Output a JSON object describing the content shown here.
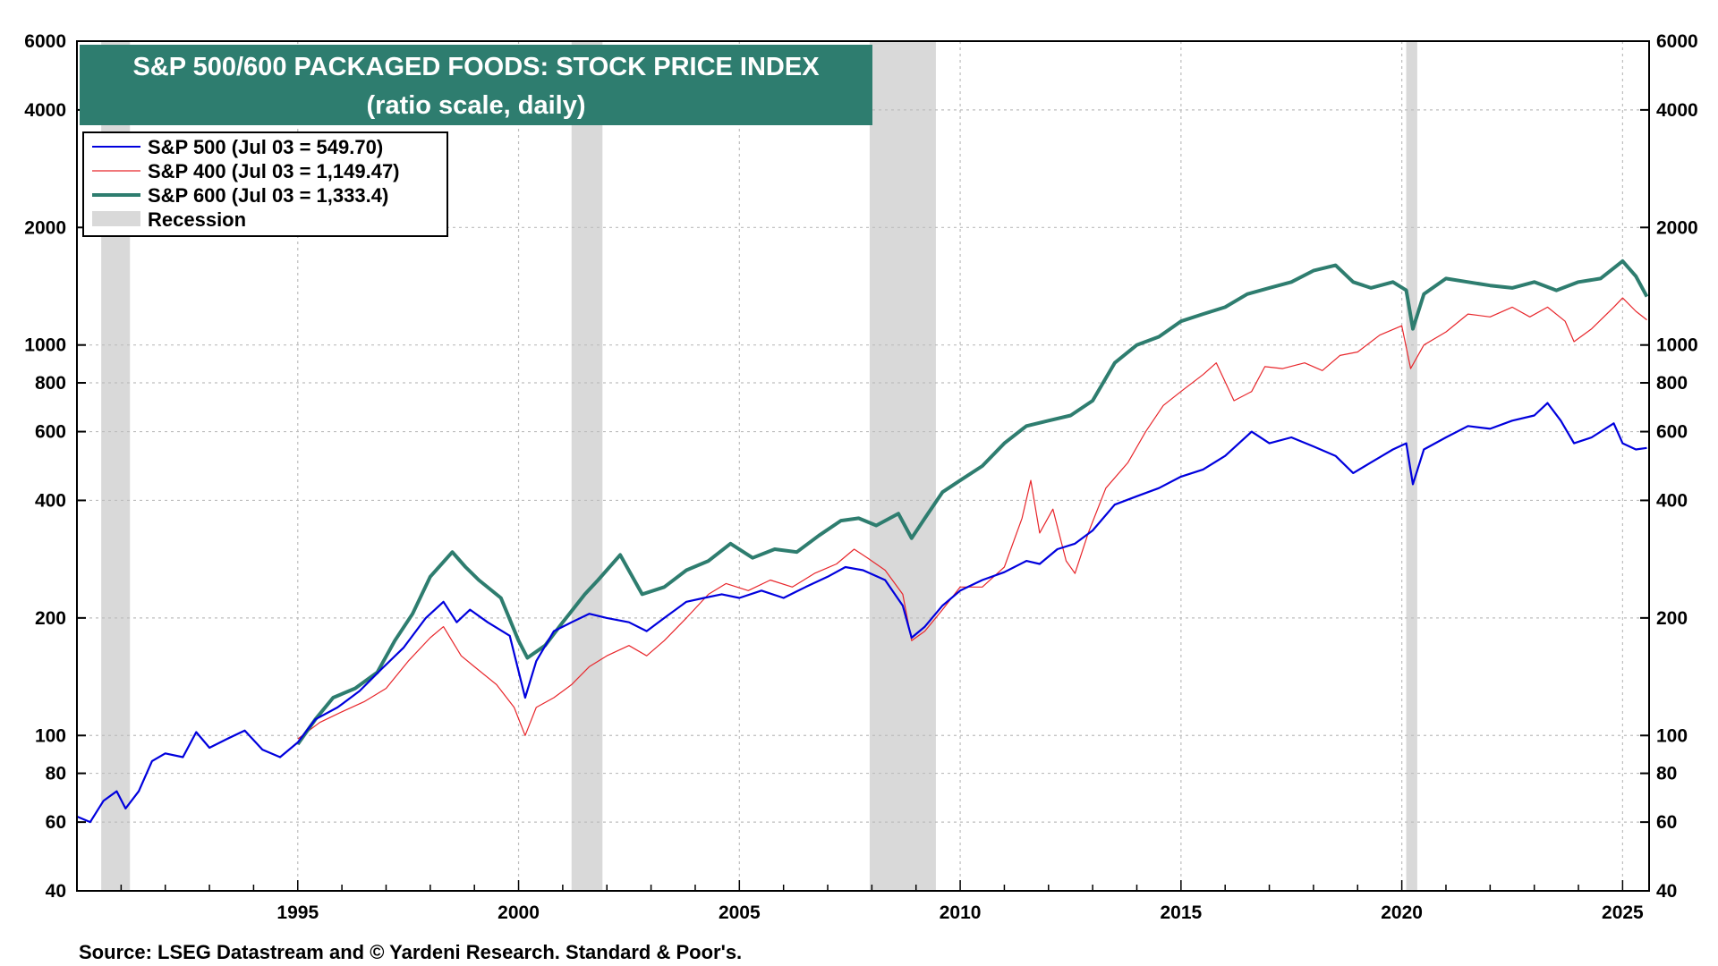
{
  "colors": {
    "sp500": "#0000dd",
    "sp400": "#e8262b",
    "sp600": "#2e7d6f",
    "recession": "#d9d9d9",
    "title_bg": "#2e7d6f",
    "grid": "#bdbdbd"
  },
  "chart_data": {
    "type": "line",
    "title": "S&P 500/600 PACKAGED FOODS: STOCK PRICE INDEX",
    "subtitle": "(ratio scale, daily)",
    "source": "Source: LSEG Datastream and © Yardeni Research. Standard & Poor's.",
    "y_scale": "log",
    "ylim": [
      40,
      6000
    ],
    "xlim": [
      1990.0,
      2025.6
    ],
    "y_ticks": [
      40,
      60,
      80,
      100,
      200,
      400,
      600,
      800,
      1000,
      2000,
      4000,
      6000
    ],
    "y_tick_labels": [
      "40",
      "60",
      "80",
      "100",
      "200",
      "400",
      "600",
      "800",
      "1000",
      "2000",
      "4000",
      "6000"
    ],
    "x_ticks": [
      1995,
      2000,
      2005,
      2010,
      2015,
      2020,
      2025
    ],
    "x_tick_labels": [
      "1995",
      "2000",
      "2005",
      "2010",
      "2015",
      "2020",
      "2025"
    ],
    "grid": true,
    "legend_position": "top-left",
    "legend": [
      {
        "label": "S&P 500 (Jul 03 = 549.70)",
        "key": "sp500"
      },
      {
        "label": "S&P 400 (Jul 03 = 1,149.47)",
        "key": "sp400"
      },
      {
        "label": "S&P 600 (Jul 03 = 1,333.4)",
        "key": "sp600"
      },
      {
        "label": "Recession",
        "key": "recession"
      }
    ],
    "recessions": [
      [
        1990.55,
        1991.2
      ],
      [
        2001.2,
        2001.9
      ],
      [
        2007.95,
        2009.45
      ],
      [
        2020.1,
        2020.35
      ]
    ],
    "series": [
      {
        "key": "sp500",
        "name": "S&P 500 (Jul 03 = 549.70)",
        "points": [
          [
            1990.0,
            62
          ],
          [
            1990.3,
            60
          ],
          [
            1990.6,
            68
          ],
          [
            1990.9,
            72
          ],
          [
            1991.1,
            65
          ],
          [
            1991.4,
            72
          ],
          [
            1991.7,
            86
          ],
          [
            1992.0,
            90
          ],
          [
            1992.4,
            88
          ],
          [
            1992.7,
            102
          ],
          [
            1993.0,
            93
          ],
          [
            1993.4,
            98
          ],
          [
            1993.8,
            103
          ],
          [
            1994.2,
            92
          ],
          [
            1994.6,
            88
          ],
          [
            1995.0,
            96
          ],
          [
            1995.4,
            110
          ],
          [
            1995.9,
            118
          ],
          [
            1996.4,
            130
          ],
          [
            1996.9,
            148
          ],
          [
            1997.4,
            168
          ],
          [
            1997.9,
            200
          ],
          [
            1998.3,
            220
          ],
          [
            1998.6,
            195
          ],
          [
            1998.9,
            210
          ],
          [
            1999.3,
            195
          ],
          [
            1999.8,
            180
          ],
          [
            2000.15,
            125
          ],
          [
            2000.4,
            155
          ],
          [
            2000.8,
            185
          ],
          [
            2001.2,
            195
          ],
          [
            2001.6,
            205
          ],
          [
            2002.0,
            200
          ],
          [
            2002.5,
            195
          ],
          [
            2002.9,
            185
          ],
          [
            2003.3,
            200
          ],
          [
            2003.8,
            220
          ],
          [
            2004.2,
            225
          ],
          [
            2004.6,
            230
          ],
          [
            2005.0,
            225
          ],
          [
            2005.5,
            235
          ],
          [
            2006.0,
            225
          ],
          [
            2006.5,
            240
          ],
          [
            2007.0,
            255
          ],
          [
            2007.4,
            270
          ],
          [
            2007.8,
            265
          ],
          [
            2008.3,
            250
          ],
          [
            2008.7,
            215
          ],
          [
            2008.9,
            178
          ],
          [
            2009.2,
            190
          ],
          [
            2009.6,
            215
          ],
          [
            2010.0,
            235
          ],
          [
            2010.5,
            250
          ],
          [
            2011.0,
            262
          ],
          [
            2011.5,
            280
          ],
          [
            2011.8,
            275
          ],
          [
            2012.2,
            300
          ],
          [
            2012.6,
            310
          ],
          [
            2013.0,
            335
          ],
          [
            2013.5,
            390
          ],
          [
            2014.0,
            410
          ],
          [
            2014.5,
            430
          ],
          [
            2015.0,
            460
          ],
          [
            2015.5,
            480
          ],
          [
            2016.0,
            520
          ],
          [
            2016.6,
            600
          ],
          [
            2017.0,
            560
          ],
          [
            2017.5,
            580
          ],
          [
            2018.0,
            550
          ],
          [
            2018.5,
            520
          ],
          [
            2018.9,
            470
          ],
          [
            2019.3,
            500
          ],
          [
            2019.8,
            540
          ],
          [
            2020.1,
            560
          ],
          [
            2020.25,
            440
          ],
          [
            2020.5,
            540
          ],
          [
            2021.0,
            580
          ],
          [
            2021.5,
            620
          ],
          [
            2022.0,
            610
          ],
          [
            2022.5,
            640
          ],
          [
            2023.0,
            660
          ],
          [
            2023.3,
            710
          ],
          [
            2023.6,
            640
          ],
          [
            2023.9,
            560
          ],
          [
            2024.3,
            580
          ],
          [
            2024.8,
            630
          ],
          [
            2025.0,
            560
          ],
          [
            2025.3,
            540
          ],
          [
            2025.55,
            545
          ]
        ]
      },
      {
        "key": "sp400",
        "name": "S&P 400 (Jul 03 = 1,149.47)",
        "points": [
          [
            1995.0,
            98
          ],
          [
            1995.5,
            108
          ],
          [
            1996.0,
            115
          ],
          [
            1996.5,
            122
          ],
          [
            1997.0,
            132
          ],
          [
            1997.5,
            155
          ],
          [
            1998.0,
            178
          ],
          [
            1998.3,
            190
          ],
          [
            1998.7,
            160
          ],
          [
            1999.0,
            150
          ],
          [
            1999.5,
            135
          ],
          [
            1999.9,
            118
          ],
          [
            2000.15,
            100
          ],
          [
            2000.4,
            118
          ],
          [
            2000.8,
            125
          ],
          [
            2001.2,
            135
          ],
          [
            2001.6,
            150
          ],
          [
            2002.0,
            160
          ],
          [
            2002.5,
            170
          ],
          [
            2002.9,
            160
          ],
          [
            2003.3,
            175
          ],
          [
            2003.8,
            200
          ],
          [
            2004.3,
            230
          ],
          [
            2004.7,
            245
          ],
          [
            2005.2,
            235
          ],
          [
            2005.7,
            250
          ],
          [
            2006.2,
            240
          ],
          [
            2006.7,
            260
          ],
          [
            2007.2,
            275
          ],
          [
            2007.6,
            300
          ],
          [
            2007.9,
            285
          ],
          [
            2008.3,
            265
          ],
          [
            2008.7,
            230
          ],
          [
            2008.9,
            175
          ],
          [
            2009.2,
            185
          ],
          [
            2009.6,
            210
          ],
          [
            2010.0,
            240
          ],
          [
            2010.5,
            240
          ],
          [
            2011.0,
            270
          ],
          [
            2011.4,
            360
          ],
          [
            2011.6,
            450
          ],
          [
            2011.8,
            330
          ],
          [
            2012.1,
            380
          ],
          [
            2012.4,
            280
          ],
          [
            2012.6,
            260
          ],
          [
            2012.9,
            330
          ],
          [
            2013.3,
            430
          ],
          [
            2013.8,
            500
          ],
          [
            2014.2,
            600
          ],
          [
            2014.6,
            700
          ],
          [
            2015.0,
            760
          ],
          [
            2015.5,
            840
          ],
          [
            2015.8,
            900
          ],
          [
            2016.2,
            720
          ],
          [
            2016.6,
            760
          ],
          [
            2016.9,
            880
          ],
          [
            2017.3,
            870
          ],
          [
            2017.8,
            900
          ],
          [
            2018.2,
            860
          ],
          [
            2018.6,
            940
          ],
          [
            2019.0,
            960
          ],
          [
            2019.5,
            1060
          ],
          [
            2020.0,
            1120
          ],
          [
            2020.2,
            870
          ],
          [
            2020.5,
            1000
          ],
          [
            2021.0,
            1080
          ],
          [
            2021.5,
            1200
          ],
          [
            2022.0,
            1180
          ],
          [
            2022.5,
            1250
          ],
          [
            2022.9,
            1180
          ],
          [
            2023.3,
            1250
          ],
          [
            2023.7,
            1150
          ],
          [
            2023.9,
            1020
          ],
          [
            2024.3,
            1100
          ],
          [
            2024.8,
            1250
          ],
          [
            2025.0,
            1320
          ],
          [
            2025.3,
            1220
          ],
          [
            2025.55,
            1160
          ]
        ]
      },
      {
        "key": "sp600",
        "name": "S&P 600 (Jul 03 = 1,333.4)",
        "points": [
          [
            1995.0,
            95
          ],
          [
            1995.4,
            110
          ],
          [
            1995.8,
            125
          ],
          [
            1996.3,
            132
          ],
          [
            1996.8,
            145
          ],
          [
            1997.2,
            175
          ],
          [
            1997.6,
            205
          ],
          [
            1998.0,
            255
          ],
          [
            1998.5,
            295
          ],
          [
            1998.8,
            270
          ],
          [
            1999.1,
            250
          ],
          [
            1999.6,
            225
          ],
          [
            2000.0,
            175
          ],
          [
            2000.2,
            158
          ],
          [
            2000.6,
            170
          ],
          [
            2001.0,
            195
          ],
          [
            2001.5,
            230
          ],
          [
            2001.8,
            250
          ],
          [
            2002.3,
            290
          ],
          [
            2002.8,
            230
          ],
          [
            2003.3,
            240
          ],
          [
            2003.8,
            265
          ],
          [
            2004.3,
            280
          ],
          [
            2004.8,
            310
          ],
          [
            2005.3,
            285
          ],
          [
            2005.8,
            300
          ],
          [
            2006.3,
            295
          ],
          [
            2006.8,
            325
          ],
          [
            2007.3,
            355
          ],
          [
            2007.7,
            360
          ],
          [
            2008.1,
            345
          ],
          [
            2008.6,
            370
          ],
          [
            2008.9,
            320
          ],
          [
            2009.2,
            360
          ],
          [
            2009.6,
            420
          ],
          [
            2010.0,
            450
          ],
          [
            2010.5,
            490
          ],
          [
            2011.0,
            560
          ],
          [
            2011.5,
            620
          ],
          [
            2012.0,
            640
          ],
          [
            2012.5,
            660
          ],
          [
            2013.0,
            720
          ],
          [
            2013.5,
            900
          ],
          [
            2014.0,
            1000
          ],
          [
            2014.5,
            1050
          ],
          [
            2015.0,
            1150
          ],
          [
            2015.5,
            1200
          ],
          [
            2016.0,
            1250
          ],
          [
            2016.5,
            1350
          ],
          [
            2017.0,
            1400
          ],
          [
            2017.5,
            1450
          ],
          [
            2018.0,
            1550
          ],
          [
            2018.5,
            1600
          ],
          [
            2018.9,
            1450
          ],
          [
            2019.3,
            1400
          ],
          [
            2019.8,
            1450
          ],
          [
            2020.1,
            1380
          ],
          [
            2020.25,
            1100
          ],
          [
            2020.5,
            1350
          ],
          [
            2021.0,
            1480
          ],
          [
            2021.5,
            1450
          ],
          [
            2022.0,
            1420
          ],
          [
            2022.5,
            1400
          ],
          [
            2023.0,
            1450
          ],
          [
            2023.5,
            1380
          ],
          [
            2024.0,
            1450
          ],
          [
            2024.5,
            1480
          ],
          [
            2025.0,
            1640
          ],
          [
            2025.3,
            1500
          ],
          [
            2025.55,
            1330
          ]
        ]
      }
    ]
  }
}
